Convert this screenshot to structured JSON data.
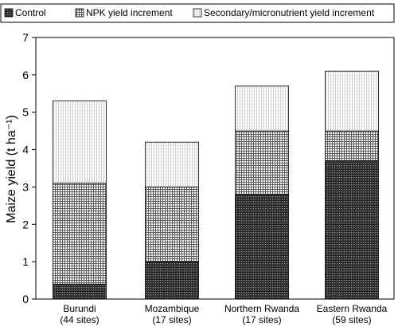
{
  "chart_data": {
    "type": "bar",
    "stacked": true,
    "categories": [
      "Burundi\n(44 sites)",
      "Mozambique\n(17 sites)",
      "Northern Rwanda\n(17 sites)",
      "Eastern Rwanda\n(59 sites)"
    ],
    "series": [
      {
        "name": "Control",
        "values": [
          0.4,
          1.0,
          2.8,
          3.7
        ],
        "color": "#2a2a2a"
      },
      {
        "name": "NPK yield increment",
        "values": [
          2.7,
          2.0,
          1.7,
          0.8
        ],
        "color": "#8c8c8c"
      },
      {
        "name": "Secondary/micronutrient yield increment",
        "values": [
          2.2,
          1.2,
          1.2,
          1.6
        ],
        "color": "#e6e6e6"
      }
    ],
    "ylabel": "Maize yield (t ha⁻¹)",
    "ylim": [
      0,
      7
    ],
    "yticks": [
      0,
      1,
      2,
      3,
      4,
      5,
      6,
      7
    ],
    "legend_position": "top",
    "grid": false
  }
}
